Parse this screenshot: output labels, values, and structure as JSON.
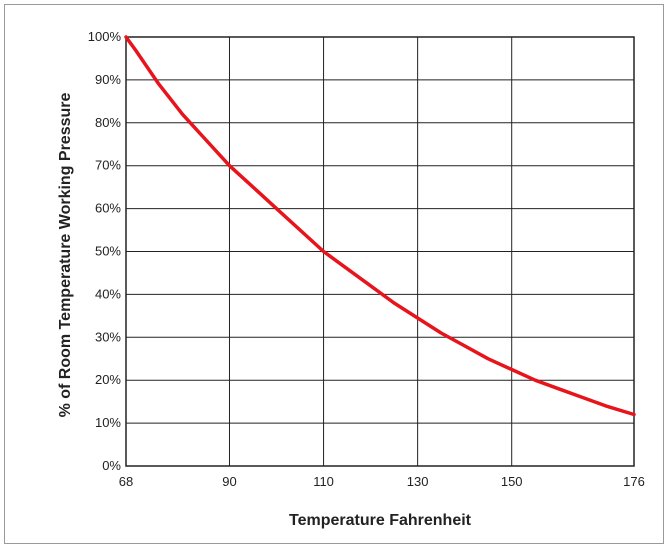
{
  "chart_data": {
    "type": "line",
    "title": "",
    "xlabel": "Temperature Fahrenheit",
    "ylabel": "% of Room Temperature Working Pressure",
    "x_ticks": [
      68,
      90,
      110,
      130,
      150,
      176
    ],
    "y_ticks": [
      0,
      10,
      20,
      30,
      40,
      50,
      60,
      70,
      80,
      90,
      100
    ],
    "y_tick_labels": [
      "0%",
      "10%",
      "20%",
      "30%",
      "40%",
      "50%",
      "60%",
      "70%",
      "80%",
      "90%",
      "100%"
    ],
    "xlim": [
      68,
      176
    ],
    "ylim": [
      0,
      100
    ],
    "grid": true,
    "line_color": "#e8141c",
    "series": [
      {
        "x": [
          68,
          70,
          75,
          80,
          85,
          90,
          95,
          100,
          105,
          110,
          115,
          120,
          125,
          130,
          135,
          140,
          145,
          150,
          155,
          160,
          165,
          170,
          176
        ],
        "values": [
          100,
          97,
          89,
          82,
          76,
          70,
          65,
          60,
          55,
          50,
          46,
          42,
          38,
          34.5,
          31,
          28,
          25,
          22.5,
          20,
          18,
          16,
          14,
          12
        ]
      }
    ]
  }
}
